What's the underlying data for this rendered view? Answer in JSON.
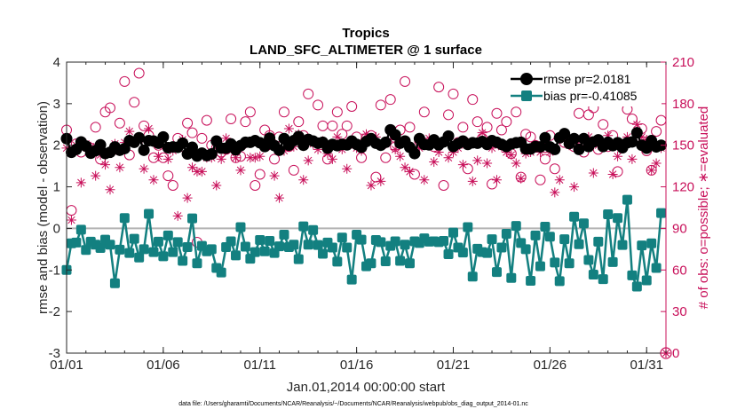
{
  "chart_data": {
    "type": "line",
    "title": "Tropics",
    "subtitle": "LAND_SFC_ALTIMETER @ 1 surface",
    "xlabel": "Jan.01,2014 00:00:00 start",
    "ylabel": "rmse and bias (model - observation)",
    "y2label": "# of obs: o=possible; ∗=evaluated",
    "xlim": [
      1,
      32
    ],
    "ylim": [
      -3,
      4
    ],
    "y2lim": [
      0,
      210
    ],
    "x_ticks": [
      1,
      6,
      11,
      16,
      21,
      26,
      31
    ],
    "x_tick_labels": [
      "01/01",
      "01/06",
      "01/11",
      "01/16",
      "01/21",
      "01/26",
      "01/31"
    ],
    "y_ticks": [
      -3,
      -2,
      -1,
      0,
      1,
      2,
      3,
      4
    ],
    "y_tick_labels": [
      "-3",
      "-2",
      "-1",
      "0",
      "1",
      "2",
      "3",
      "4"
    ],
    "y2_ticks": [
      0,
      30,
      60,
      90,
      120,
      150,
      180,
      210
    ],
    "y2_tick_labels": [
      "0",
      "30",
      "60",
      "90",
      "120",
      "150",
      "180",
      "210"
    ],
    "reference_line": 0,
    "series": [
      {
        "name": "rmse",
        "legend": "rmse pr=2.0181",
        "axis": "left",
        "color": "#000000",
        "marker": "circle",
        "mean": 2.0181
      },
      {
        "name": "bias",
        "legend": "bias pr=-0.41085",
        "axis": "left",
        "color": "#138080",
        "marker": "square",
        "mean": -0.41085
      },
      {
        "name": "possible",
        "axis": "right",
        "color": "#c8105a",
        "marker": "open-circle"
      },
      {
        "name": "evaluated",
        "axis": "right",
        "color": "#c8105a",
        "marker": "asterisk"
      }
    ],
    "n_points": 124,
    "time_step_days": 0.25,
    "rmse_values": [
      2.16,
      1.83,
      1.9,
      2.08,
      1.98,
      1.81,
      1.87,
      2.01,
      1.8,
      1.83,
      1.96,
      1.88,
      1.92,
      2.11,
      2.07,
      2.18,
      1.88,
      2.11,
      2.1,
      2.05,
      2.2,
      1.94,
      1.96,
      1.95,
      2.05,
      1.79,
      1.95,
      1.74,
      1.81,
      1.75,
      1.79,
      2.1,
      1.93,
      1.93,
      2.03,
      1.89,
      1.99,
      2.07,
      2.07,
      2.11,
      2.06,
      1.97,
      2.17,
      1.99,
      1.88,
      2.16,
      2.0,
      2.11,
      2.21,
      2.0,
      2.14,
      2.1,
      2.05,
      2.07,
      1.93,
      2.02,
      1.99,
      2.02,
      2.01,
      2.1,
      2.02,
      1.95,
      2.09,
      2.16,
      2.05,
      2.0,
      2.07,
      2.37,
      2.25,
      2.05,
      2.1,
      1.95,
      1.8,
      2.16,
      2.02,
      2.01,
      2.13,
      2.01,
      2.08,
      2.22,
      1.97,
      2.04,
      2.1,
      2.02,
      2.06,
      2.05,
      2.09,
      2.02,
      2.11,
      2.07,
      2.02,
      1.97,
      2.03,
      2.06,
      2.07,
      1.91,
      1.91,
      1.97,
      1.96,
      2.18,
      1.96,
      1.9,
      2.18,
      2.28,
      2.04,
      2.16,
      1.9,
      2.16,
      1.97,
      2.08,
      2.13,
      1.97,
      2.07,
      1.99,
      2.06,
      1.94,
      2.06,
      2.08,
      2.3,
      2.0,
      1.93,
      2.11,
      1.96,
      2.0
    ],
    "bias_values": [
      -1.0,
      -0.36,
      -0.34,
      -0.03,
      -0.52,
      -0.32,
      -0.39,
      -0.47,
      -0.27,
      -0.39,
      -1.32,
      -0.51,
      0.25,
      -0.59,
      -0.25,
      -0.7,
      -0.5,
      0.35,
      -0.57,
      -0.32,
      -0.67,
      -0.17,
      -0.57,
      -0.33,
      -0.78,
      -0.45,
      0.24,
      -0.84,
      -0.42,
      -0.55,
      -0.5,
      -0.95,
      -1.06,
      -0.45,
      -0.31,
      -0.65,
      0.03,
      -0.44,
      -0.73,
      -0.57,
      -0.28,
      -0.55,
      -0.3,
      -0.59,
      -0.43,
      -0.15,
      -0.45,
      -0.39,
      -0.74,
      0.05,
      -0.39,
      -0.04,
      -0.4,
      -0.61,
      -0.34,
      -0.46,
      -0.8,
      -0.22,
      -0.46,
      -1.23,
      -0.15,
      -0.27,
      -0.91,
      -0.84,
      -0.28,
      -0.33,
      -0.79,
      -0.42,
      -0.31,
      -0.78,
      -0.39,
      -0.84,
      -0.31,
      -0.35,
      -0.24,
      -0.32,
      -0.31,
      -0.33,
      -0.3,
      -0.62,
      -0.1,
      -0.46,
      -0.58,
      0.03,
      -1.16,
      -0.49,
      -0.57,
      -0.59,
      -0.26,
      -1.05,
      -0.46,
      -0.13,
      -1.19,
      0.06,
      -0.35,
      -0.5,
      -1.26,
      -0.17,
      -0.91,
      0.04,
      -0.2,
      -0.82,
      -1.27,
      -0.26,
      -0.84,
      0.28,
      -0.38,
      0.12,
      -0.76,
      -1.11,
      -0.32,
      -1.22,
      0.34,
      -0.81,
      0.25,
      -0.4,
      0.69,
      -1.13,
      -1.4,
      -0.41,
      -1.25,
      -0.36,
      -0.95,
      0.37
    ],
    "possible_values": [
      161,
      103,
      151,
      145,
      149,
      148,
      163,
      140,
      174,
      177,
      147,
      166,
      196,
      143,
      181,
      202,
      164,
      157,
      141,
      150,
      141,
      128,
      121,
      155,
      149,
      166,
      159,
      80,
      155,
      168,
      150,
      148,
      145,
      147,
      169,
      141,
      142,
      167,
      174,
      121,
      129,
      161,
      157,
      140,
      156,
      174,
      149,
      132,
      167,
      157,
      187,
      153,
      179,
      164,
      140,
      164,
      174,
      158,
      164,
      178,
      156,
      141,
      155,
      157,
      127,
      179,
      141,
      183,
      149,
      161,
      196,
      163,
      129,
      153,
      174,
      152,
      149,
      192,
      121,
      172,
      187,
      152,
      163,
      133,
      183,
      167,
      155,
      163,
      122,
      173,
      161,
      167,
      144,
      174,
      127,
      158,
      156,
      150,
      125,
      140,
      157,
      133,
      155,
      152,
      153,
      149,
      173,
      145,
      172,
      177,
      147,
      165,
      149,
      157,
      131,
      183,
      176,
      169,
      182,
      162,
      146,
      132,
      160,
      168
    ],
    "evaluated_values": [
      148,
      96,
      150,
      123,
      151,
      149,
      128,
      143,
      136,
      118,
      151,
      134,
      152,
      160,
      153,
      154,
      133,
      162,
      125,
      142,
      150,
      140,
      146,
      99,
      154,
      112,
      134,
      131,
      131,
      141,
      141,
      121,
      140,
      155,
      148,
      141,
      132,
      151,
      141,
      141,
      142,
      151,
      150,
      128,
      112,
      146,
      162,
      149,
      158,
      125,
      139,
      151,
      147,
      153,
      144,
      140,
      156,
      147,
      133,
      152,
      148,
      146,
      158,
      121,
      156,
      124,
      151,
      154,
      147,
      142,
      134,
      131,
      146,
      148,
      125,
      155,
      138,
      145,
      152,
      141,
      145,
      148,
      136,
      152,
      124,
      139,
      159,
      137,
      148,
      125,
      149,
      145,
      143,
      137,
      126,
      144,
      145,
      150,
      145,
      152,
      145,
      116,
      125,
      155,
      150,
      120,
      150,
      154,
      156,
      130,
      150,
      149,
      157,
      129,
      142,
      151,
      156,
      140,
      165,
      156,
      154,
      132,
      137,
      148
    ]
  },
  "footer_note": "data file: /Users/gharamti/Documents/NCAR/Reanalysis/~/Documents/NCAR/Reanalysis/webpub/obs_diag_output_2014-01.nc"
}
